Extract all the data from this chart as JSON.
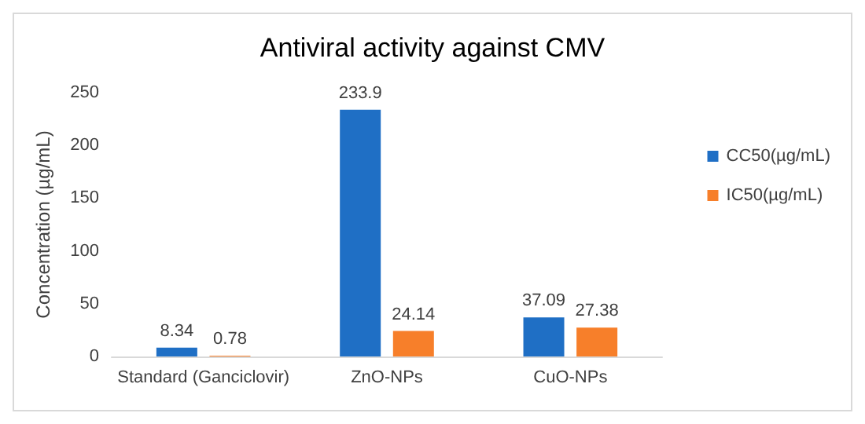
{
  "chart_data": {
    "type": "bar",
    "title": "Antiviral activity against CMV",
    "ylabel": "Concentration (µg/mL)",
    "categories": [
      "Standard (Ganciclovir)",
      "ZnO-NPs",
      "CuO-NPs"
    ],
    "series": [
      {
        "name": "CC50(µg/mL)",
        "color": "#1f6fc5",
        "values": [
          8.34,
          233.9,
          37.09
        ]
      },
      {
        "name": "IC50(µg/mL)",
        "color": "#f77f2a",
        "values": [
          0.78,
          24.14,
          27.38
        ]
      }
    ],
    "ylim": [
      0,
      250
    ],
    "yticks": [
      0,
      50,
      100,
      150,
      200,
      250
    ],
    "grid": false,
    "legend": "right",
    "data_labels": true
  }
}
